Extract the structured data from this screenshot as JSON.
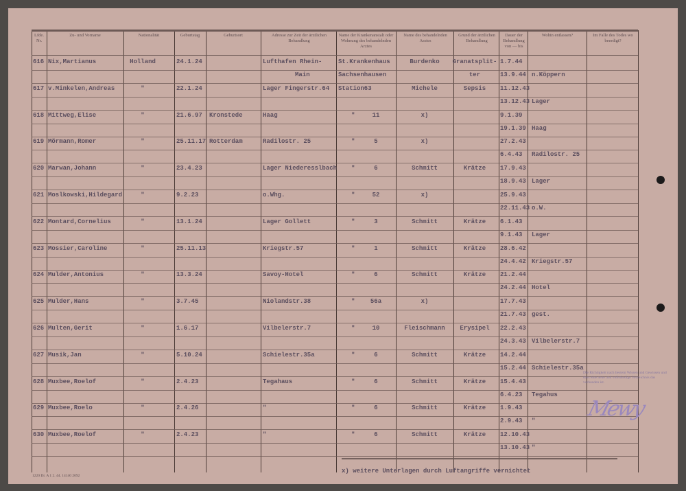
{
  "header": {
    "nr": "Lfde. Nr.",
    "name": "Zu- und Vorname",
    "nationality": "Nationalität",
    "birth_date": "Geburtstag",
    "birthplace": "Geburtsort",
    "address": "Adresse zur Zeit der ärztlichen Behandlung",
    "hospital": "Name der Krankenanstalt oder Wohnung des behandelnden Arztes",
    "doctor": "Name des behandelnden Arztes",
    "reason": "Grund der ärztlichen Behandlung",
    "duration": "Dauer der Behandlung von — bis",
    "discharged": "Wohin entlassen?",
    "buried": "Im Falle des Todes wo beerdigt?"
  },
  "rows": [
    {
      "nr": "616",
      "name": "Nix,Martianus",
      "nat": "Holland",
      "bdate": "24.1.24",
      "bplace": "",
      "addr": "Lufthafen Rhein-",
      "addr2": "Main",
      "hosp": "St.Krankenhaus",
      "hosp2": "Sachsenhausen",
      "hnum": "",
      "doctor": "Burdenko",
      "reason": "Granatsplit-",
      "reason2": "ter",
      "from": "1.7.44",
      "to": "13.9.44",
      "moved": "n.Köppern"
    },
    {
      "nr": "617",
      "name": "v.Minkelen,Andreas",
      "nat": "\"",
      "bdate": "22.1.24",
      "bplace": "",
      "addr": "Lager Fingerstr.64",
      "addr2": "",
      "hosp": "Station63",
      "hosp2": "",
      "hnum": "",
      "doctor": "Michele",
      "reason": "Sepsis",
      "reason2": "",
      "from": "11.12.43",
      "to": "13.12.43",
      "moved": "Lager"
    },
    {
      "nr": "618",
      "name": "Mittweg,Elise",
      "nat": "\"",
      "bdate": "21.6.97",
      "bplace": "Kronstede",
      "addr": "Haag",
      "addr2": "",
      "hosp": "\"",
      "hosp2": "",
      "hnum": "11",
      "doctor": "x)",
      "reason": "",
      "reason2": "",
      "from": "9.1.39",
      "to": "19.1.39",
      "moved": "Haag"
    },
    {
      "nr": "619",
      "name": "Mörmann,Romer",
      "nat": "\"",
      "bdate": "25.11.17",
      "bplace": "Rotterdam",
      "addr": "Radilostr. 25",
      "addr2": "",
      "hosp": "\"",
      "hosp2": "",
      "hnum": "5",
      "doctor": "x)",
      "reason": "",
      "reason2": "",
      "from": "27.2.43",
      "to": "6.4.43",
      "moved": "Radilostr. 25"
    },
    {
      "nr": "620",
      "name": "Marwan,Johann",
      "nat": "\"",
      "bdate": "23.4.23",
      "bplace": "",
      "addr": "Lager Niederesslbach",
      "addr2": "",
      "hosp": "\"",
      "hosp2": "",
      "hnum": "6",
      "doctor": "Schmitt",
      "reason": "Krätze",
      "reason2": "",
      "from": "17.9.43",
      "to": "18.9.43",
      "moved": "Lager"
    },
    {
      "nr": "621",
      "name": "Moslkowski,Hildegard",
      "nat": "\"",
      "bdate": "9.2.23",
      "bplace": "",
      "addr": "o.Whg.",
      "addr2": "",
      "hosp": "\"",
      "hosp2": "",
      "hnum": "52",
      "doctor": "x)",
      "reason": "",
      "reason2": "",
      "from": "25.9.43",
      "to": "22.11.43",
      "moved": "o.W."
    },
    {
      "nr": "622",
      "name": "Montard,Cornelius",
      "nat": "\"",
      "bdate": "13.1.24",
      "bplace": "",
      "addr": "Lager Gollett",
      "addr2": "",
      "hosp": "\"",
      "hosp2": "",
      "hnum": "3",
      "doctor": "Schmitt",
      "reason": "Krätze",
      "reason2": "",
      "from": "6.1.43",
      "to": "9.1.43",
      "moved": "Lager"
    },
    {
      "nr": "623",
      "name": "Mossier,Caroline",
      "nat": "\"",
      "bdate": "25.11.13",
      "bplace": "",
      "addr": "Kriegstr.57",
      "addr2": "",
      "hosp": "\"",
      "hosp2": "",
      "hnum": "1",
      "doctor": "Schmitt",
      "reason": "Krätze",
      "reason2": "",
      "from": "28.6.42",
      "to": "24.4.42",
      "moved": "Kriegstr.57"
    },
    {
      "nr": "624",
      "name": "Mulder,Antonius",
      "nat": "\"",
      "bdate": "13.3.24",
      "bplace": "",
      "addr": "Savoy-Hotel",
      "addr2": "",
      "hosp": "\"",
      "hosp2": "",
      "hnum": "6",
      "doctor": "Schmitt",
      "reason": "Krätze",
      "reason2": "",
      "from": "21.2.44",
      "to": "24.2.44",
      "moved": "Hotel"
    },
    {
      "nr": "625",
      "name": "Mulder,Hans",
      "nat": "\"",
      "bdate": "3.7.45",
      "bplace": "",
      "addr": "Niolandstr.38",
      "addr2": "",
      "hosp": "\"",
      "hosp2": "",
      "hnum": "56a",
      "doctor": "x)",
      "reason": "",
      "reason2": "",
      "from": "17.7.43",
      "to": "21.7.43",
      "moved": "gest."
    },
    {
      "nr": "626",
      "name": "Multen,Gerit",
      "nat": "\"",
      "bdate": "1.6.17",
      "bplace": "",
      "addr": "Vilbelerstr.7",
      "addr2": "",
      "hosp": "\"",
      "hosp2": "",
      "hnum": "10",
      "doctor": "Fleischmann",
      "reason": "Erysipel",
      "reason2": "",
      "from": "22.2.43",
      "to": "24.3.43",
      "moved": "Vilbelerstr.7"
    },
    {
      "nr": "627",
      "name": "Musik,Jan",
      "nat": "\"",
      "bdate": "5.10.24",
      "bplace": "",
      "addr": "Schielestr.35a",
      "addr2": "",
      "hosp": "\"",
      "hosp2": "",
      "hnum": "6",
      "doctor": "Schmitt",
      "reason": "Krätze",
      "reason2": "",
      "from": "14.2.44",
      "to": "15.2.44",
      "moved": "Schielestr.35a"
    },
    {
      "nr": "628",
      "name": "Muxbee,Roelof",
      "nat": "\"",
      "bdate": "2.4.23",
      "bplace": "",
      "addr": "Tegahaus",
      "addr2": "",
      "hosp": "\"",
      "hosp2": "",
      "hnum": "6",
      "doctor": "Schmitt",
      "reason": "Krätze",
      "reason2": "",
      "from": "15.4.43",
      "to": "6.4.23",
      "moved": "Tegahus"
    },
    {
      "nr": "629",
      "name": "Muxbee,Roelo",
      "nat": "\"",
      "bdate": "2.4.26",
      "bplace": "",
      "addr": "\"",
      "addr2": "",
      "hosp": "\"",
      "hosp2": "",
      "hnum": "6",
      "doctor": "Schmitt",
      "reason": "Krätze",
      "reason2": "",
      "from": "1.9.43",
      "to": "2.9.43",
      "moved": "\""
    },
    {
      "nr": "630",
      "name": "Muxbee,Roelof",
      "nat": "\"",
      "bdate": "2.4.23",
      "bplace": "",
      "addr": "\"",
      "addr2": "",
      "hosp": "\"",
      "hosp2": "",
      "hnum": "6",
      "doctor": "Schmitt",
      "reason": "Krätze",
      "reason2": "",
      "from": "12.10.43",
      "to": "13.10.43",
      "moved": "\""
    }
  ],
  "footnote": "x) weitere Unterlagen durch Luftangriffe vernichtet",
  "form_code": "1220 Dr. A 1 2. 44. 14140 2092",
  "stamp": "Die Richtigkeit nach bestem Wissen und Gewissen und dass eine neue und vollständige Verzeichnis das vorhanden ist.",
  "signature": "Mewy"
}
